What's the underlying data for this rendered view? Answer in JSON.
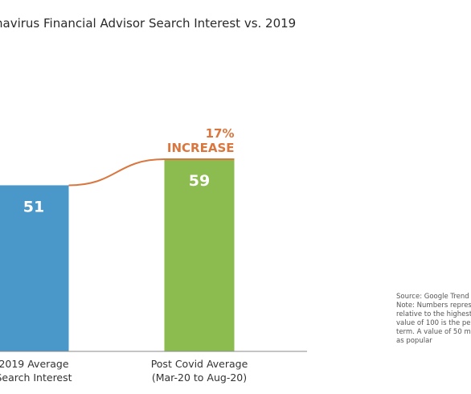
{
  "title": "navirus Financial Advisor Search Interest vs. 2019",
  "chart_data": {
    "type": "bar",
    "title": "navirus Financial Advisor Search Interest vs. 2019",
    "categories": [
      [
        "2019 Average",
        "Search Interest"
      ],
      [
        "Post Covid Average",
        "(Mar-20 to Aug-20)"
      ]
    ],
    "values": [
      51,
      59
    ],
    "bar_colors": [
      "#4a97c9",
      "#8cbb4f"
    ],
    "ylim": [
      0,
      100
    ],
    "grid": false,
    "annotation": {
      "lines": [
        "17%",
        "INCREASE"
      ],
      "color": "#d9773f"
    }
  },
  "source_note": [
    "Source: Google Trend",
    "Note: Numbers repres",
    "relative to the highest",
    "value of 100 is the pea",
    "term. A value of 50 m",
    "as popular"
  ]
}
